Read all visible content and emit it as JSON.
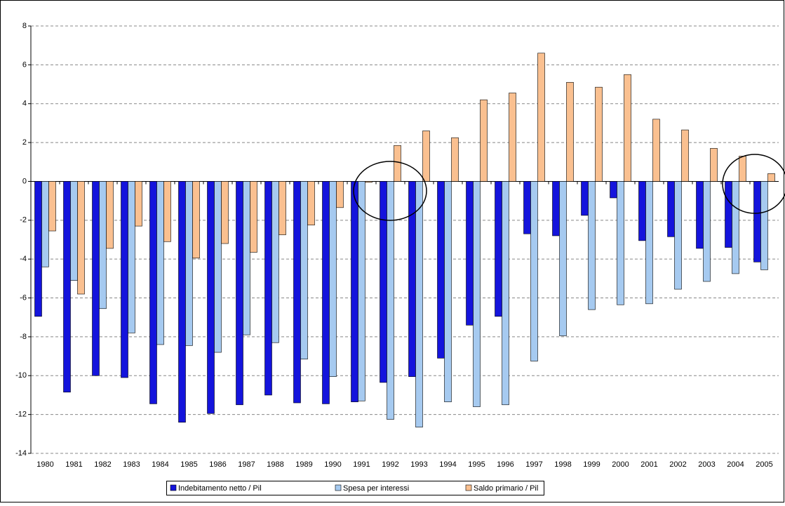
{
  "chart_data": {
    "type": "bar",
    "categories": [
      "1980",
      "1981",
      "1982",
      "1983",
      "1984",
      "1985",
      "1986",
      "1987",
      "1988",
      "1989",
      "1990",
      "1991",
      "1992",
      "1993",
      "1994",
      "1995",
      "1996",
      "1997",
      "1998",
      "1999",
      "2000",
      "2001",
      "2002",
      "2003",
      "2004",
      "2005"
    ],
    "series": [
      {
        "name": "Indebitamento netto / Pil",
        "color": "#1414dc",
        "values": [
          -6.95,
          -10.85,
          -10.0,
          -10.1,
          -11.45,
          -12.4,
          -11.95,
          -11.5,
          -11.0,
          -11.4,
          -11.45,
          -11.35,
          -10.35,
          -10.05,
          -9.1,
          -7.4,
          -6.95,
          -2.7,
          -2.8,
          -1.75,
          -0.85,
          -3.05,
          -2.85,
          -3.45,
          -3.4,
          -4.15
        ]
      },
      {
        "name": "Spesa per interessi",
        "color": "#a6caf0",
        "values": [
          -4.4,
          -5.1,
          -6.55,
          -7.8,
          -8.4,
          -8.45,
          -8.8,
          -7.9,
          -8.3,
          -9.15,
          -10.05,
          -11.3,
          -12.25,
          -12.65,
          -11.35,
          -11.6,
          -11.5,
          -9.25,
          -7.95,
          -6.6,
          -6.35,
          -6.3,
          -5.55,
          -5.15,
          -4.75,
          -4.55
        ]
      },
      {
        "name": "Saldo primario / Pil",
        "color": "#fac090",
        "values": [
          -2.55,
          -5.8,
          -3.45,
          -2.3,
          -3.1,
          -3.95,
          -3.2,
          -3.65,
          -2.75,
          -2.25,
          -1.35,
          -0.05,
          1.85,
          2.6,
          2.25,
          4.2,
          4.55,
          6.6,
          5.1,
          4.85,
          5.5,
          3.2,
          2.65,
          1.7,
          1.3,
          0.4
        ]
      }
    ],
    "ylim": [
      -14,
      8
    ],
    "yticks": [
      -14,
      -12,
      -10,
      -8,
      -6,
      -4,
      -2,
      0,
      2,
      4,
      6,
      8
    ],
    "grid": true,
    "legend": "bottom"
  }
}
